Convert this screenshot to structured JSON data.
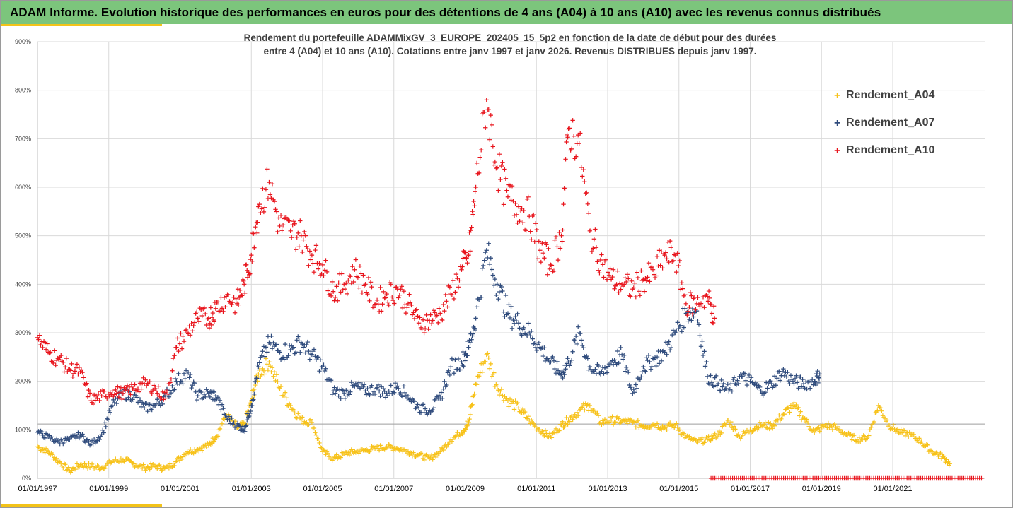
{
  "banner": {
    "title": "ADAM Informe. Evolution historique des performances en euros pour des détentions de 4 ans (A04) à 10 ans (A10) avec les revenus connus distribués"
  },
  "colors": {
    "banner_bg": "#7cc57c",
    "accent": "#f3c319",
    "A04": "#f7c21a",
    "A07": "#2f4b7c",
    "A10": "#e8141c"
  },
  "chart_data": {
    "type": "scatter",
    "title": "Rendement du portefeuille ADAMMixGV_3_EUROPE_202405_15_5p2  en fonction de la date de début pour des durées",
    "subtitle": "entre 4 (A04) et 10 ans (A10). Cotations entre janv 1997 et janv 2026. Revenus DISTRIBUES depuis janv 1997.",
    "x_ticks": [
      "01/01/1997",
      "01/01/1999",
      "01/01/2001",
      "01/01/2003",
      "01/01/2005",
      "01/01/2007",
      "01/01/2009",
      "01/01/2011",
      "01/01/2013",
      "01/01/2015",
      "01/01/2017",
      "01/01/2019",
      "01/01/2021"
    ],
    "y_ticks": [
      "0%",
      "100%",
      "200%",
      "300%",
      "400%",
      "500%",
      "600%",
      "700%",
      "800%",
      "900%"
    ],
    "xlim": [
      1997.0,
      2023.6
    ],
    "ylim": [
      0,
      900
    ],
    "grid": true,
    "legend_position": "right",
    "series": [
      {
        "name": "Rendement_A04",
        "marker": "+",
        "x": [
          1997.0,
          1997.3,
          1997.6,
          1997.9,
          1998.2,
          1998.5,
          1998.8,
          1999.1,
          1999.4,
          1999.7,
          2000.0,
          2000.3,
          2000.6,
          2000.9,
          2001.2,
          2001.5,
          2001.8,
          2002.0,
          2002.3,
          2002.6,
          2002.8,
          2003.0,
          2003.2,
          2003.5,
          2003.8,
          2004.1,
          2004.4,
          2004.7,
          2005.0,
          2005.3,
          2005.6,
          2005.9,
          2006.2,
          2006.5,
          2006.8,
          2007.1,
          2007.4,
          2007.7,
          2008.0,
          2008.3,
          2008.6,
          2008.9,
          2009.1,
          2009.3,
          2009.6,
          2009.9,
          2010.2,
          2010.5,
          2010.8,
          2011.1,
          2011.4,
          2011.7,
          2011.9,
          2012.2,
          2012.5,
          2012.8,
          2013.1,
          2013.4,
          2013.7,
          2014.0,
          2014.3,
          2014.6,
          2014.9,
          2015.2,
          2015.5,
          2015.8,
          2016.1,
          2016.4,
          2016.7,
          2017.0,
          2017.3,
          2017.6,
          2017.9,
          2018.2,
          2018.5,
          2018.8,
          2019.1,
          2019.4,
          2019.7,
          2020.0,
          2020.3,
          2020.6,
          2020.9,
          2021.2,
          2021.5,
          2021.8,
          2022.1,
          2022.4,
          2022.6
        ],
        "y": [
          65,
          55,
          35,
          15,
          28,
          25,
          22,
          35,
          38,
          30,
          22,
          25,
          20,
          35,
          55,
          60,
          68,
          85,
          130,
          105,
          110,
          160,
          215,
          240,
          185,
          150,
          120,
          115,
          55,
          40,
          50,
          55,
          58,
          62,
          65,
          62,
          55,
          48,
          40,
          55,
          80,
          95,
          115,
          195,
          255,
          190,
          160,
          145,
          120,
          100,
          85,
          110,
          120,
          140,
          150,
          115,
          120,
          118,
          115,
          108,
          112,
          105,
          110,
          85,
          75,
          80,
          90,
          120,
          85,
          100,
          110,
          108,
          130,
          150,
          125,
          95,
          110,
          105,
          90,
          80,
          85,
          150,
          110,
          95,
          90,
          75,
          55,
          45,
          30
        ]
      },
      {
        "name": "Rendement_A07",
        "marker": "+",
        "x": [
          1997.0,
          1997.3,
          1997.6,
          1997.9,
          1998.2,
          1998.5,
          1998.8,
          1999.1,
          1999.4,
          1999.7,
          2000.0,
          2000.3,
          2000.6,
          2000.9,
          2001.2,
          2001.5,
          2001.8,
          2002.0,
          2002.3,
          2002.6,
          2002.8,
          2003.0,
          2003.2,
          2003.5,
          2003.8,
          2004.1,
          2004.4,
          2004.7,
          2005.0,
          2005.3,
          2005.6,
          2005.9,
          2006.2,
          2006.5,
          2006.8,
          2007.1,
          2007.4,
          2007.7,
          2008.0,
          2008.3,
          2008.6,
          2008.9,
          2009.1,
          2009.3,
          2009.6,
          2009.9,
          2010.2,
          2010.5,
          2010.8,
          2011.1,
          2011.4,
          2011.7,
          2011.9,
          2012.2,
          2012.5,
          2012.8,
          2013.1,
          2013.4,
          2013.7,
          2014.0,
          2014.3,
          2014.6,
          2014.9,
          2015.2,
          2015.5,
          2015.8,
          2016.1,
          2016.4,
          2016.7,
          2017.0,
          2017.3,
          2017.6,
          2017.9,
          2018.2,
          2018.5,
          2018.8,
          2018.95
        ],
        "y": [
          95,
          85,
          75,
          80,
          90,
          70,
          90,
          150,
          175,
          170,
          145,
          150,
          170,
          200,
          215,
          170,
          175,
          170,
          125,
          110,
          100,
          150,
          230,
          280,
          260,
          265,
          280,
          255,
          230,
          180,
          175,
          190,
          180,
          185,
          175,
          190,
          170,
          145,
          140,
          165,
          230,
          240,
          270,
          330,
          470,
          400,
          340,
          320,
          300,
          270,
          240,
          215,
          240,
          300,
          230,
          215,
          240,
          255,
          175,
          230,
          245,
          260,
          300,
          340,
          345,
          210,
          195,
          180,
          210,
          200,
          180,
          195,
          220,
          200,
          195,
          200,
          215
        ]
      },
      {
        "name": "Rendement_A10",
        "marker": "+",
        "x": [
          1997.0,
          1997.3,
          1997.6,
          1997.9,
          1998.2,
          1998.5,
          1998.8,
          1999.1,
          1999.4,
          1999.7,
          2000.0,
          2000.3,
          2000.6,
          2000.9,
          2001.2,
          2001.5,
          2001.8,
          2002.0,
          2002.3,
          2002.6,
          2002.8,
          2003.0,
          2003.2,
          2003.5,
          2003.8,
          2004.1,
          2004.4,
          2004.7,
          2005.0,
          2005.3,
          2005.6,
          2005.9,
          2006.2,
          2006.5,
          2006.8,
          2007.1,
          2007.4,
          2007.7,
          2008.0,
          2008.3,
          2008.6,
          2008.9,
          2009.1,
          2009.3,
          2009.6,
          2009.9,
          2010.2,
          2010.5,
          2010.8,
          2011.1,
          2011.4,
          2011.7,
          2011.9,
          2012.2,
          2012.5,
          2012.8,
          2013.1,
          2013.4,
          2013.7,
          2014.0,
          2014.3,
          2014.6,
          2014.9,
          2015.2,
          2015.5,
          2015.8,
          2016.0
        ],
        "y": [
          290,
          260,
          245,
          225,
          220,
          160,
          170,
          180,
          175,
          185,
          195,
          185,
          165,
          270,
          300,
          330,
          330,
          350,
          375,
          360,
          400,
          460,
          560,
          610,
          520,
          510,
          500,
          460,
          440,
          385,
          400,
          430,
          400,
          360,
          380,
          390,
          360,
          320,
          325,
          340,
          380,
          430,
          460,
          600,
          780,
          640,
          580,
          560,
          540,
          470,
          440,
          500,
          720,
          690,
          510,
          450,
          410,
          400,
          390,
          410,
          420,
          460,
          460,
          360,
          360,
          375,
          330
        ]
      },
      {
        "name": "",
        "marker": "+",
        "color_series": "A10",
        "x_range": [
          2015.9,
          2023.5
        ],
        "y_constant": 0
      }
    ]
  },
  "legend": [
    {
      "key": "A04",
      "label": "Rendement_A04"
    },
    {
      "key": "A07",
      "label": "Rendement_A07"
    },
    {
      "key": "A10",
      "label": "Rendement_A10"
    }
  ]
}
